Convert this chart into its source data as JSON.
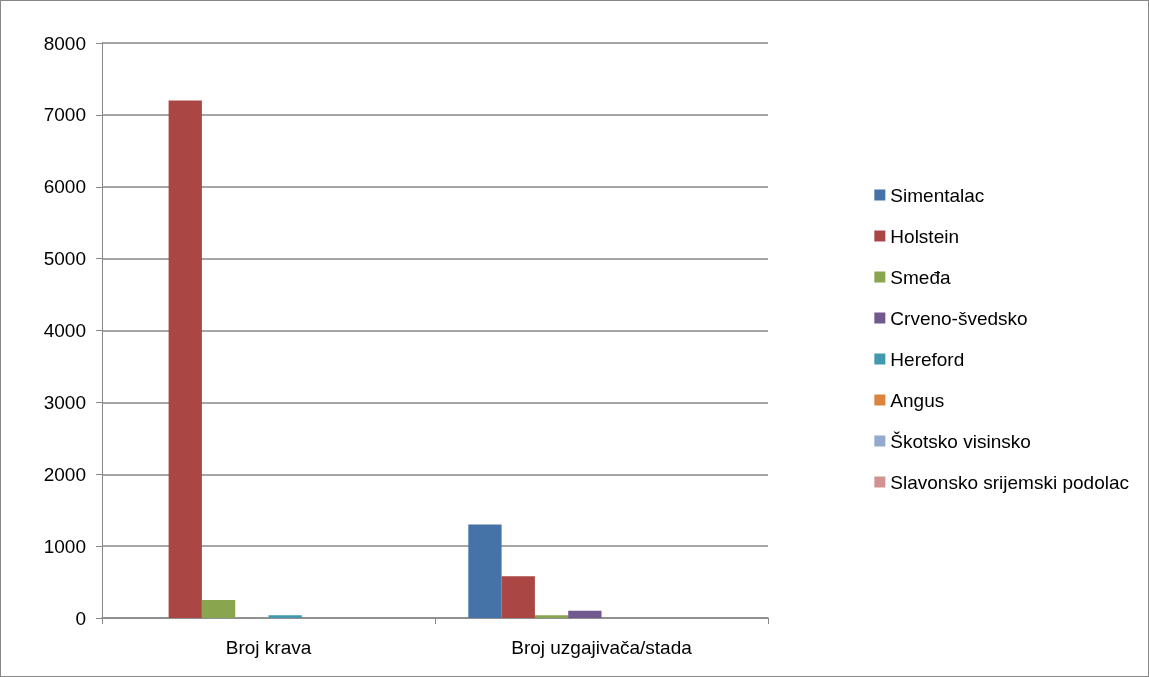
{
  "chart_data": {
    "type": "bar",
    "categories": [
      "Broj krava",
      "Broj uzgajivača/stada"
    ],
    "series": [
      {
        "name": "Simentalac",
        "color": "#4572a7",
        "values": [
          0,
          1300
        ]
      },
      {
        "name": "Holstein",
        "color": "#aa4643",
        "values": [
          7200,
          580
        ]
      },
      {
        "name": "Smeđa",
        "color": "#89a54e",
        "values": [
          250,
          40
        ]
      },
      {
        "name": "Crveno-švedsko",
        "color": "#71588f",
        "values": [
          0,
          100
        ]
      },
      {
        "name": "Hereford",
        "color": "#4198af",
        "values": [
          40,
          0
        ]
      },
      {
        "name": "Angus",
        "color": "#db843d",
        "values": [
          0,
          0
        ]
      },
      {
        "name": "Škotsko visinsko",
        "color": "#93a9cf",
        "values": [
          0,
          0
        ]
      },
      {
        "name": "Slavonsko srijemski podolac",
        "color": "#d19392",
        "values": [
          0,
          0
        ]
      }
    ],
    "ylim": [
      0,
      8000
    ],
    "yticks": [
      0,
      1000,
      2000,
      3000,
      4000,
      5000,
      6000,
      7000,
      8000
    ],
    "grid": "y",
    "legend": "right"
  }
}
